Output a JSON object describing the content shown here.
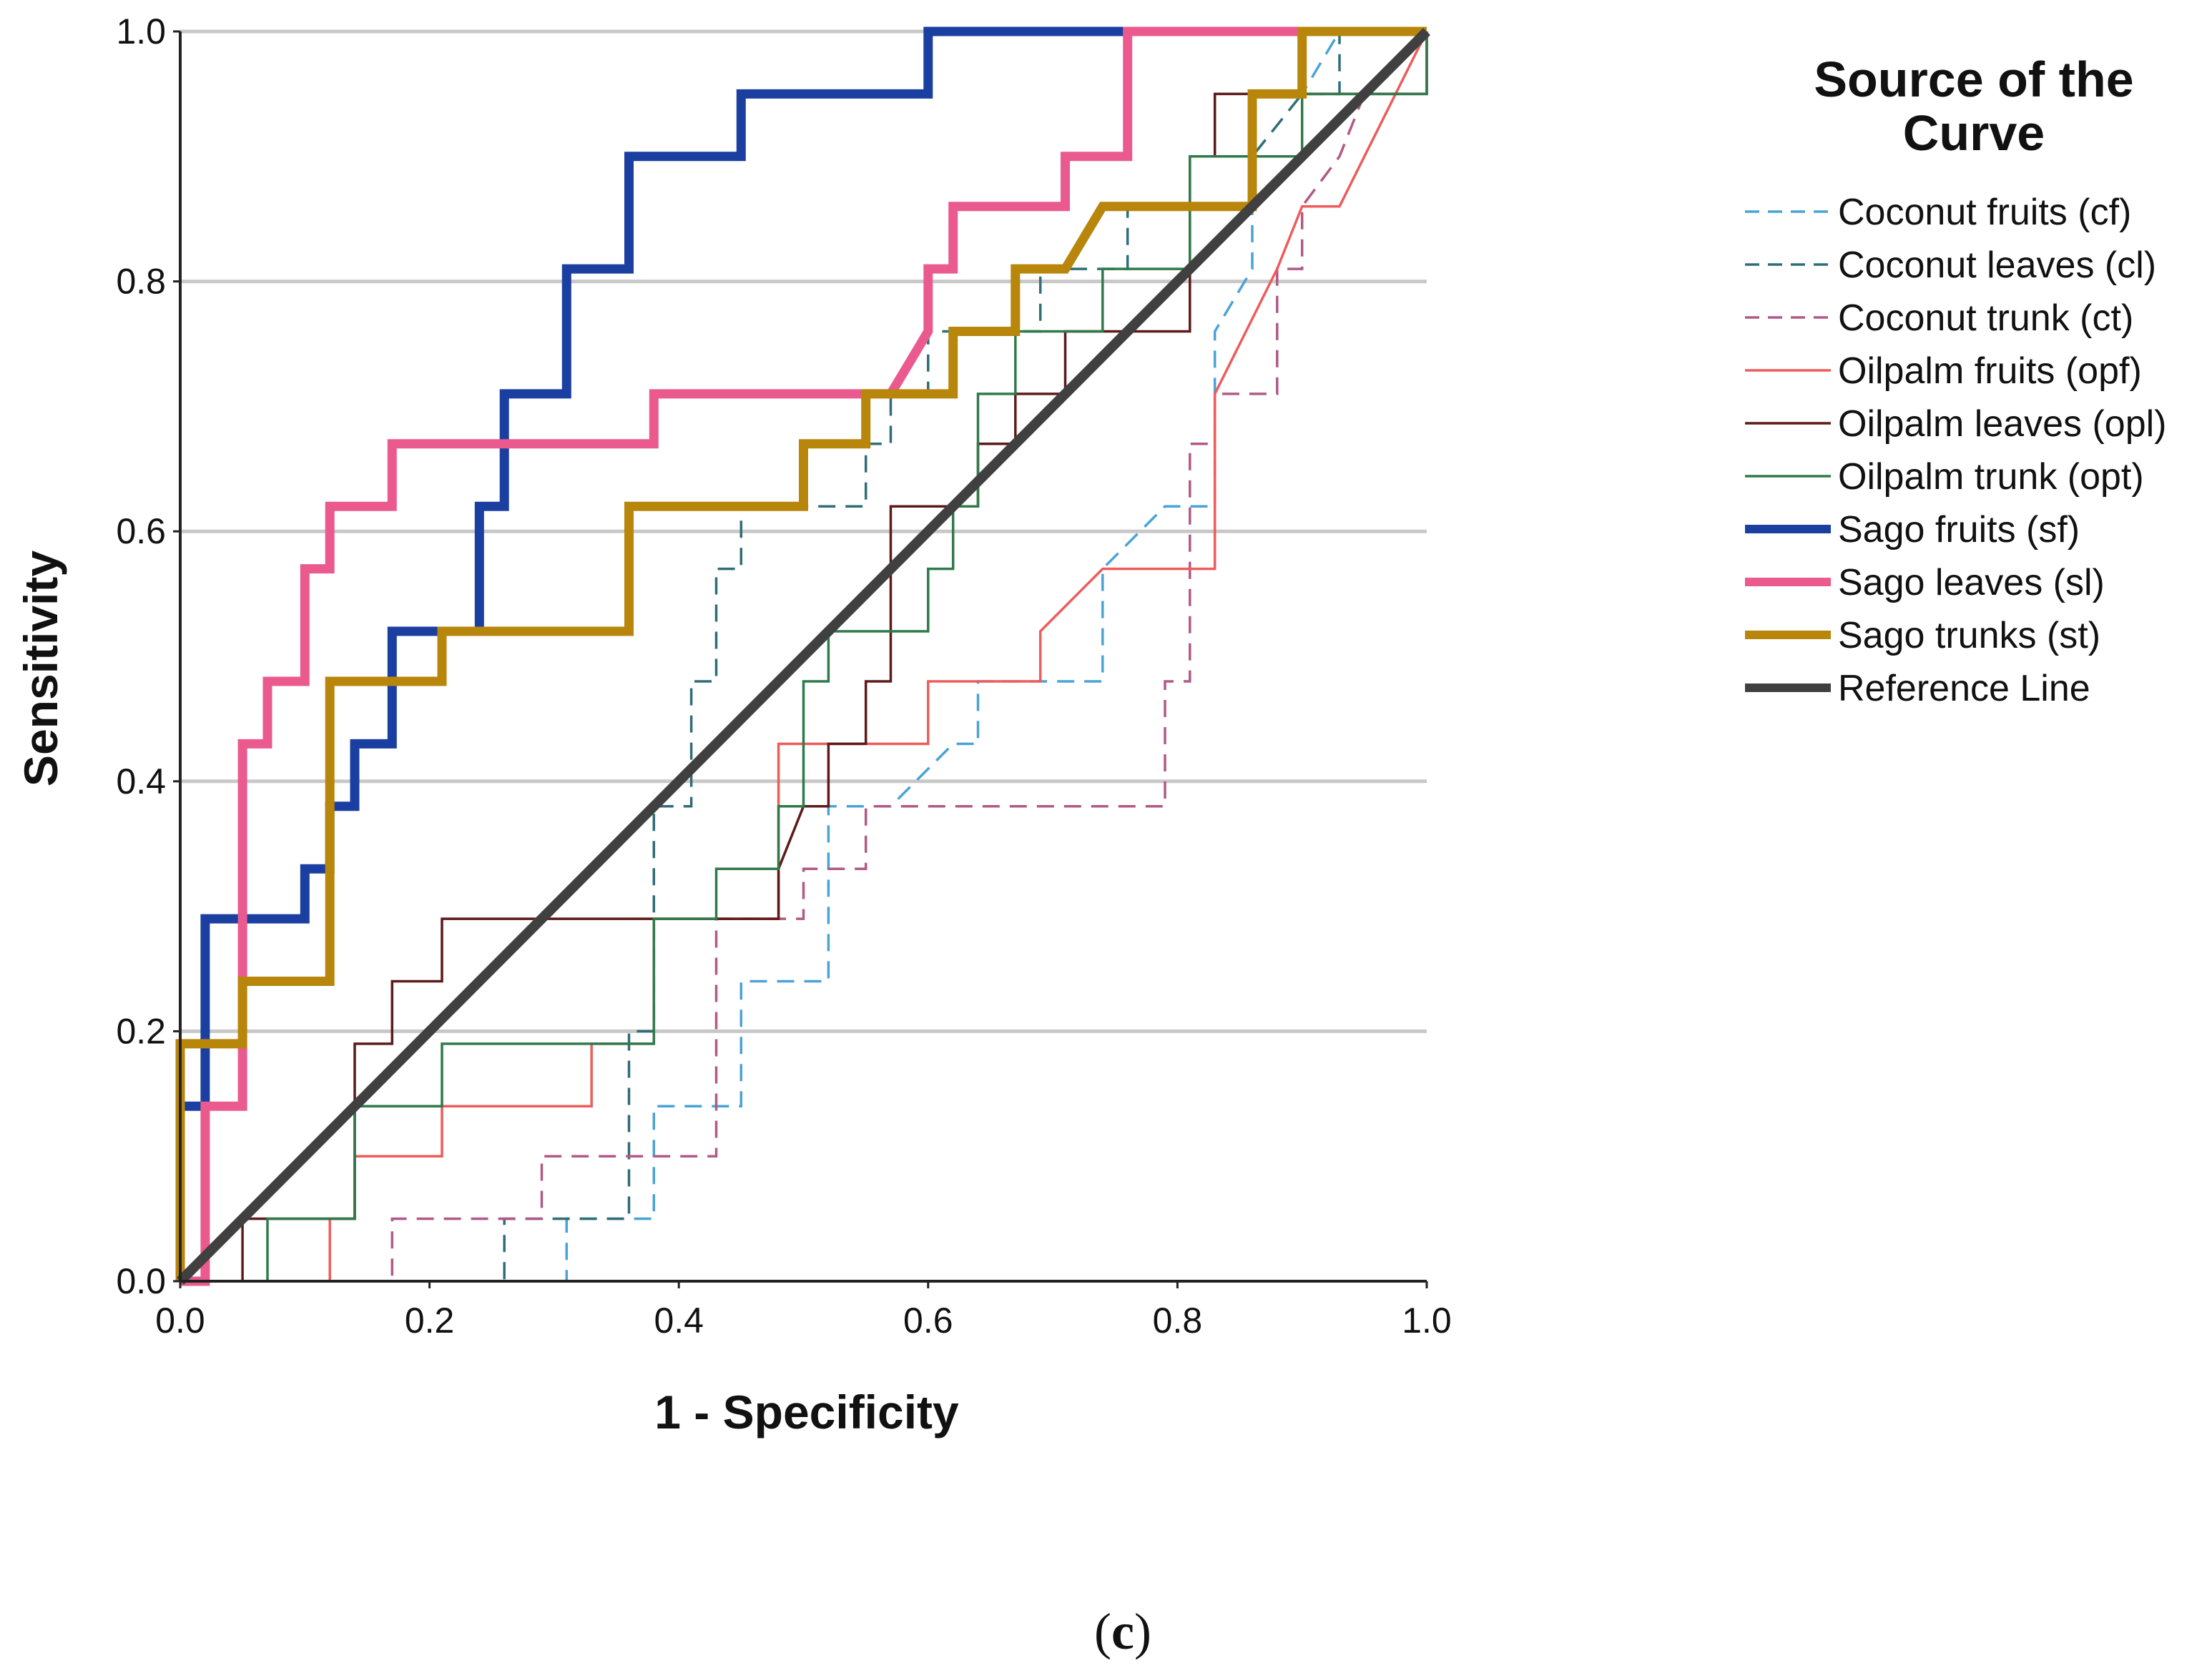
{
  "chart_data": {
    "type": "line",
    "title": "",
    "xlabel": "1 - Specificity",
    "ylabel": "Sensitivity",
    "xlim": [
      0,
      1
    ],
    "ylim": [
      0,
      1
    ],
    "x_ticks": [
      "0.0",
      "0.2",
      "0.4",
      "0.6",
      "0.8",
      "1.0"
    ],
    "y_ticks": [
      "0.0",
      "0.2",
      "0.4",
      "0.6",
      "0.8",
      "1.0"
    ],
    "grid": "horizontal",
    "legend": {
      "position": "right",
      "title_line1": "Source of the",
      "title_line2": "Curve"
    },
    "caption": {
      "open": "(",
      "letter": "c",
      "close": ")"
    },
    "series": [
      {
        "name": "Coconut fruits (cf)",
        "color": "#4aa3d6",
        "style": "dashed",
        "weight": "thin",
        "points": [
          [
            0,
            0
          ],
          [
            0.31,
            0
          ],
          [
            0.31,
            0.05
          ],
          [
            0.38,
            0.05
          ],
          [
            0.38,
            0.1
          ],
          [
            0.38,
            0.14
          ],
          [
            0.43,
            0.14
          ],
          [
            0.45,
            0.14
          ],
          [
            0.45,
            0.24
          ],
          [
            0.52,
            0.24
          ],
          [
            0.52,
            0.33
          ],
          [
            0.52,
            0.38
          ],
          [
            0.57,
            0.38
          ],
          [
            0.62,
            0.43
          ],
          [
            0.64,
            0.43
          ],
          [
            0.64,
            0.48
          ],
          [
            0.74,
            0.48
          ],
          [
            0.74,
            0.57
          ],
          [
            0.79,
            0.62
          ],
          [
            0.83,
            0.62
          ],
          [
            0.83,
            0.76
          ],
          [
            0.86,
            0.81
          ],
          [
            0.86,
            0.86
          ],
          [
            0.86,
            0.9
          ],
          [
            0.86,
            0.95
          ],
          [
            0.9,
            0.95
          ],
          [
            0.93,
            1.0
          ],
          [
            1.0,
            1.0
          ]
        ]
      },
      {
        "name": "Coconut leaves (cl)",
        "color": "#2f6d77",
        "style": "dashed",
        "weight": "thin",
        "points": [
          [
            0,
            0
          ],
          [
            0.26,
            0
          ],
          [
            0.26,
            0.05
          ],
          [
            0.36,
            0.05
          ],
          [
            0.36,
            0.1
          ],
          [
            0.36,
            0.2
          ],
          [
            0.38,
            0.2
          ],
          [
            0.38,
            0.38
          ],
          [
            0.41,
            0.38
          ],
          [
            0.41,
            0.48
          ],
          [
            0.43,
            0.48
          ],
          [
            0.43,
            0.57
          ],
          [
            0.45,
            0.57
          ],
          [
            0.45,
            0.62
          ],
          [
            0.55,
            0.62
          ],
          [
            0.55,
            0.67
          ],
          [
            0.57,
            0.67
          ],
          [
            0.57,
            0.71
          ],
          [
            0.6,
            0.71
          ],
          [
            0.6,
            0.76
          ],
          [
            0.64,
            0.76
          ],
          [
            0.69,
            0.76
          ],
          [
            0.69,
            0.81
          ],
          [
            0.76,
            0.81
          ],
          [
            0.76,
            0.86
          ],
          [
            0.86,
            0.86
          ],
          [
            0.86,
            0.9
          ],
          [
            0.9,
            0.95
          ],
          [
            0.93,
            0.95
          ],
          [
            0.93,
            1.0
          ],
          [
            1.0,
            1.0
          ]
        ]
      },
      {
        "name": "Coconut trunk (ct)",
        "color": "#b05a86",
        "style": "dashed",
        "weight": "thin",
        "points": [
          [
            0,
            0
          ],
          [
            0.17,
            0
          ],
          [
            0.17,
            0.05
          ],
          [
            0.29,
            0.05
          ],
          [
            0.29,
            0.1
          ],
          [
            0.43,
            0.1
          ],
          [
            0.43,
            0.29
          ],
          [
            0.5,
            0.29
          ],
          [
            0.5,
            0.33
          ],
          [
            0.55,
            0.33
          ],
          [
            0.55,
            0.38
          ],
          [
            0.79,
            0.38
          ],
          [
            0.79,
            0.48
          ],
          [
            0.81,
            0.48
          ],
          [
            0.81,
            0.67
          ],
          [
            0.83,
            0.67
          ],
          [
            0.83,
            0.71
          ],
          [
            0.88,
            0.71
          ],
          [
            0.88,
            0.81
          ],
          [
            0.9,
            0.81
          ],
          [
            0.9,
            0.86
          ],
          [
            0.93,
            0.9
          ],
          [
            0.95,
            0.95
          ],
          [
            1.0,
            1.0
          ]
        ]
      },
      {
        "name": "Oilpalm fruits (opf)",
        "color": "#ee5c5c",
        "style": "solid",
        "weight": "thin",
        "points": [
          [
            0,
            0
          ],
          [
            0.12,
            0
          ],
          [
            0.12,
            0.05
          ],
          [
            0.14,
            0.05
          ],
          [
            0.14,
            0.1
          ],
          [
            0.21,
            0.1
          ],
          [
            0.21,
            0.14
          ],
          [
            0.33,
            0.14
          ],
          [
            0.33,
            0.19
          ],
          [
            0.38,
            0.19
          ],
          [
            0.38,
            0.29
          ],
          [
            0.48,
            0.29
          ],
          [
            0.48,
            0.43
          ],
          [
            0.6,
            0.43
          ],
          [
            0.6,
            0.48
          ],
          [
            0.69,
            0.48
          ],
          [
            0.69,
            0.52
          ],
          [
            0.74,
            0.57
          ],
          [
            0.76,
            0.57
          ],
          [
            0.83,
            0.57
          ],
          [
            0.83,
            0.71
          ],
          [
            0.88,
            0.81
          ],
          [
            0.9,
            0.86
          ],
          [
            0.93,
            0.86
          ],
          [
            0.95,
            0.9
          ],
          [
            1.0,
            1.0
          ]
        ]
      },
      {
        "name": "Oilpalm leaves (opl)",
        "color": "#5e1a1a",
        "style": "solid",
        "weight": "thin",
        "points": [
          [
            0,
            0
          ],
          [
            0.05,
            0
          ],
          [
            0.05,
            0.05
          ],
          [
            0.14,
            0.05
          ],
          [
            0.14,
            0.19
          ],
          [
            0.17,
            0.19
          ],
          [
            0.17,
            0.24
          ],
          [
            0.21,
            0.24
          ],
          [
            0.21,
            0.29
          ],
          [
            0.48,
            0.29
          ],
          [
            0.48,
            0.33
          ],
          [
            0.5,
            0.38
          ],
          [
            0.52,
            0.38
          ],
          [
            0.52,
            0.43
          ],
          [
            0.55,
            0.43
          ],
          [
            0.55,
            0.48
          ],
          [
            0.57,
            0.48
          ],
          [
            0.57,
            0.62
          ],
          [
            0.64,
            0.62
          ],
          [
            0.64,
            0.67
          ],
          [
            0.67,
            0.67
          ],
          [
            0.67,
            0.71
          ],
          [
            0.71,
            0.71
          ],
          [
            0.71,
            0.76
          ],
          [
            0.76,
            0.76
          ],
          [
            0.76,
            0.76
          ],
          [
            0.81,
            0.76
          ],
          [
            0.81,
            0.86
          ],
          [
            0.81,
            0.9
          ],
          [
            0.83,
            0.9
          ],
          [
            0.83,
            0.95
          ],
          [
            1.0,
            0.95
          ],
          [
            1.0,
            1.0
          ]
        ]
      },
      {
        "name": "Oilpalm trunk (opt)",
        "color": "#2f7a4a",
        "style": "solid",
        "weight": "thin",
        "points": [
          [
            0,
            0
          ],
          [
            0.07,
            0
          ],
          [
            0.07,
            0.05
          ],
          [
            0.14,
            0.05
          ],
          [
            0.14,
            0.14
          ],
          [
            0.21,
            0.14
          ],
          [
            0.21,
            0.19
          ],
          [
            0.38,
            0.19
          ],
          [
            0.38,
            0.29
          ],
          [
            0.43,
            0.29
          ],
          [
            0.43,
            0.33
          ],
          [
            0.48,
            0.33
          ],
          [
            0.48,
            0.38
          ],
          [
            0.5,
            0.38
          ],
          [
            0.5,
            0.48
          ],
          [
            0.52,
            0.48
          ],
          [
            0.52,
            0.52
          ],
          [
            0.6,
            0.52
          ],
          [
            0.6,
            0.57
          ],
          [
            0.62,
            0.57
          ],
          [
            0.62,
            0.62
          ],
          [
            0.64,
            0.62
          ],
          [
            0.64,
            0.67
          ],
          [
            0.64,
            0.71
          ],
          [
            0.67,
            0.71
          ],
          [
            0.67,
            0.76
          ],
          [
            0.74,
            0.76
          ],
          [
            0.74,
            0.81
          ],
          [
            0.81,
            0.81
          ],
          [
            0.81,
            0.9
          ],
          [
            0.9,
            0.9
          ],
          [
            0.9,
            0.95
          ],
          [
            1.0,
            0.95
          ],
          [
            1.0,
            1.0
          ]
        ]
      },
      {
        "name": "Sago fruits (sf)",
        "color": "#1a3fa0",
        "style": "solid",
        "weight": "thick",
        "points": [
          [
            0,
            0
          ],
          [
            0,
            0.14
          ],
          [
            0.02,
            0.14
          ],
          [
            0.02,
            0.29
          ],
          [
            0.1,
            0.29
          ],
          [
            0.1,
            0.33
          ],
          [
            0.12,
            0.33
          ],
          [
            0.12,
            0.38
          ],
          [
            0.14,
            0.38
          ],
          [
            0.14,
            0.43
          ],
          [
            0.17,
            0.43
          ],
          [
            0.17,
            0.48
          ],
          [
            0.17,
            0.52
          ],
          [
            0.24,
            0.52
          ],
          [
            0.24,
            0.62
          ],
          [
            0.26,
            0.62
          ],
          [
            0.26,
            0.67
          ],
          [
            0.26,
            0.71
          ],
          [
            0.31,
            0.71
          ],
          [
            0.31,
            0.81
          ],
          [
            0.36,
            0.81
          ],
          [
            0.36,
            0.86
          ],
          [
            0.36,
            0.9
          ],
          [
            0.45,
            0.9
          ],
          [
            0.45,
            0.95
          ],
          [
            0.6,
            0.95
          ],
          [
            0.6,
            1.0
          ],
          [
            1.0,
            1.0
          ]
        ]
      },
      {
        "name": "Sago leaves (sl)",
        "color": "#ea5a8e",
        "style": "solid",
        "weight": "thick",
        "points": [
          [
            0,
            0
          ],
          [
            0.02,
            0
          ],
          [
            0.02,
            0.14
          ],
          [
            0.05,
            0.14
          ],
          [
            0.05,
            0.43
          ],
          [
            0.07,
            0.43
          ],
          [
            0.07,
            0.48
          ],
          [
            0.1,
            0.48
          ],
          [
            0.1,
            0.57
          ],
          [
            0.12,
            0.57
          ],
          [
            0.12,
            0.62
          ],
          [
            0.17,
            0.62
          ],
          [
            0.17,
            0.67
          ],
          [
            0.36,
            0.67
          ],
          [
            0.38,
            0.67
          ],
          [
            0.38,
            0.71
          ],
          [
            0.57,
            0.71
          ],
          [
            0.6,
            0.76
          ],
          [
            0.6,
            0.81
          ],
          [
            0.62,
            0.81
          ],
          [
            0.62,
            0.86
          ],
          [
            0.71,
            0.86
          ],
          [
            0.71,
            0.9
          ],
          [
            0.76,
            0.9
          ],
          [
            0.76,
            1.0
          ],
          [
            1.0,
            1.0
          ]
        ]
      },
      {
        "name": "Sago trunks (st)",
        "color": "#b8860b",
        "style": "solid",
        "weight": "thick",
        "points": [
          [
            0,
            0
          ],
          [
            0,
            0.19
          ],
          [
            0.05,
            0.19
          ],
          [
            0.05,
            0.24
          ],
          [
            0.12,
            0.24
          ],
          [
            0.12,
            0.48
          ],
          [
            0.21,
            0.48
          ],
          [
            0.21,
            0.52
          ],
          [
            0.36,
            0.52
          ],
          [
            0.36,
            0.62
          ],
          [
            0.5,
            0.62
          ],
          [
            0.5,
            0.67
          ],
          [
            0.55,
            0.67
          ],
          [
            0.55,
            0.71
          ],
          [
            0.62,
            0.71
          ],
          [
            0.62,
            0.76
          ],
          [
            0.67,
            0.76
          ],
          [
            0.67,
            0.81
          ],
          [
            0.71,
            0.81
          ],
          [
            0.74,
            0.86
          ],
          [
            0.86,
            0.86
          ],
          [
            0.86,
            0.9
          ],
          [
            0.86,
            0.95
          ],
          [
            0.9,
            0.95
          ],
          [
            0.9,
            1.0
          ],
          [
            1.0,
            1.0
          ]
        ]
      },
      {
        "name": "Reference Line",
        "color": "#404040",
        "style": "solid",
        "weight": "reference",
        "points": [
          [
            0,
            0
          ],
          [
            1,
            1
          ]
        ]
      }
    ]
  }
}
